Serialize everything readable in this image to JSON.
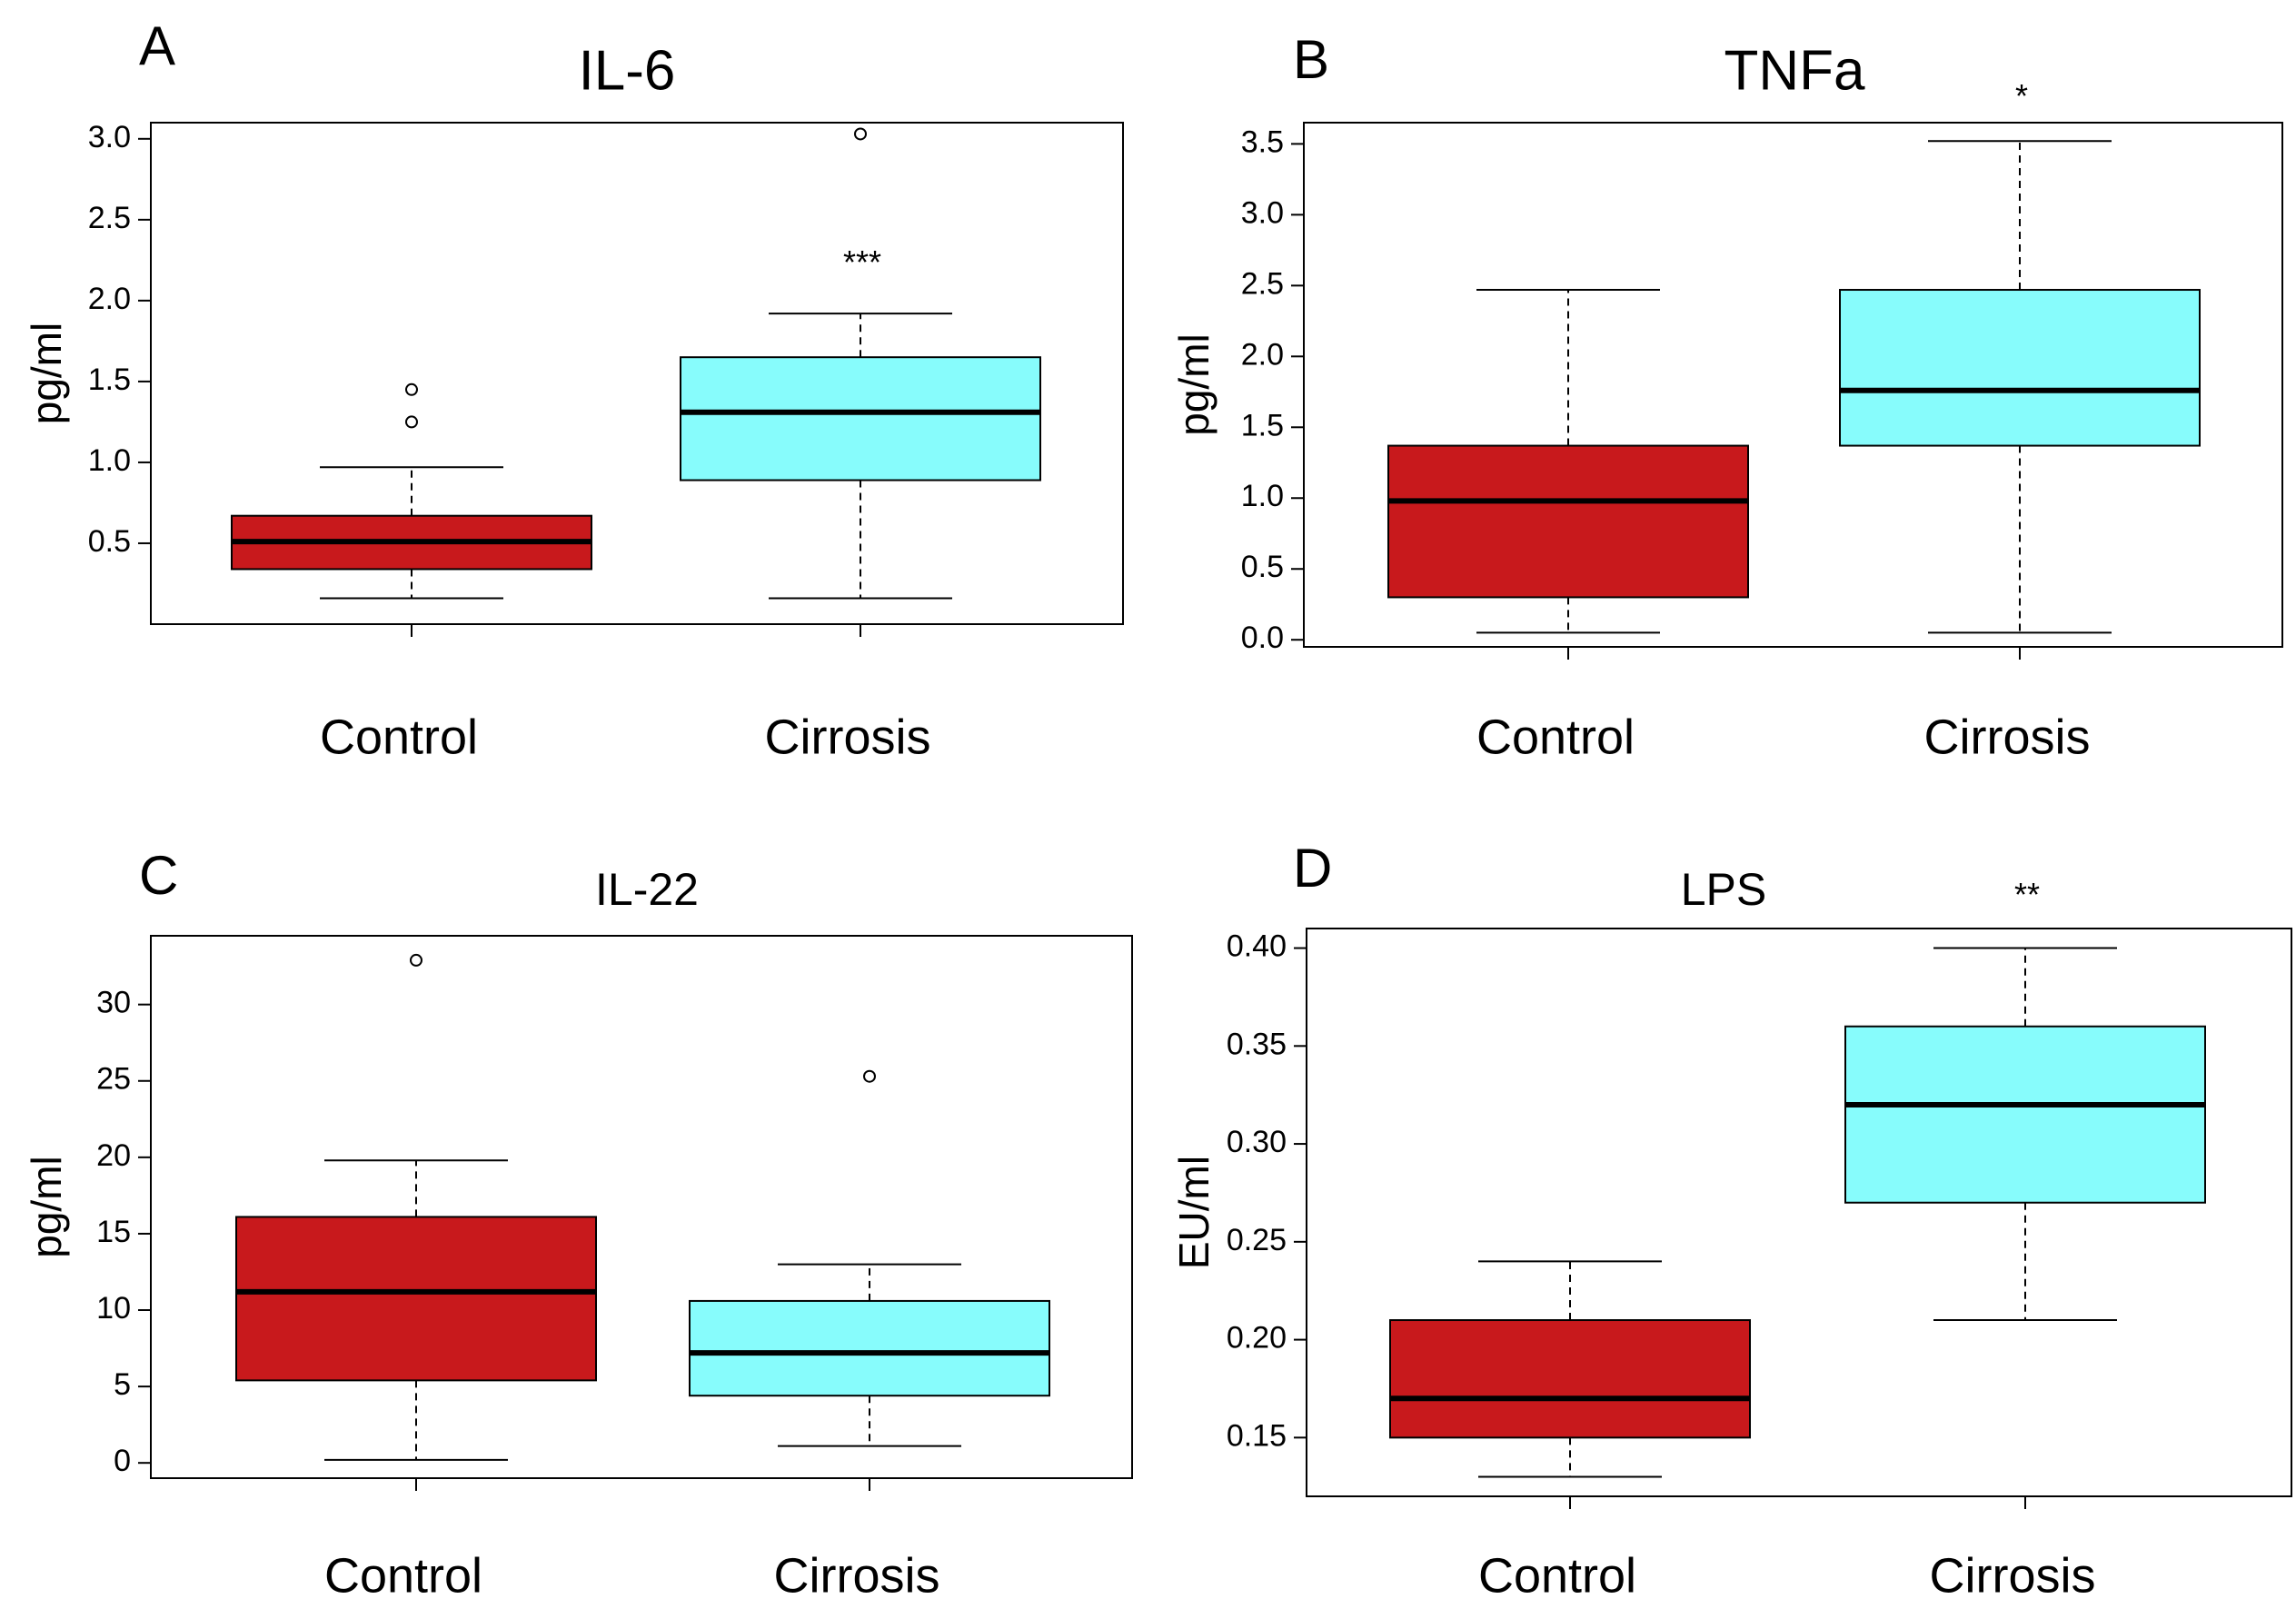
{
  "colors": {
    "control": "#c8191c",
    "cirrosis": "#87fcfc",
    "stroke": "#000000"
  },
  "chart_data": [
    {
      "type": "box",
      "panel_letter": "A",
      "title": "IL-6",
      "ylabel": "pg/ml",
      "categories": [
        "Control",
        "Cirrosis"
      ],
      "ylim": [
        0.0,
        3.1
      ],
      "yticks": [
        "0.5",
        "1.0",
        "1.5",
        "2.0",
        "2.5",
        "3.0"
      ],
      "boxes": [
        {
          "name": "Control",
          "whisker_low": 0.16,
          "q1": 0.34,
          "median": 0.51,
          "q3": 0.67,
          "whisker_high": 0.97,
          "outliers": [
            1.25,
            1.45
          ]
        },
        {
          "name": "Cirrosis",
          "whisker_low": 0.16,
          "q1": 0.89,
          "median": 1.31,
          "q3": 1.65,
          "whisker_high": 1.92,
          "outliers": [
            3.03
          ]
        }
      ],
      "significance": "***",
      "significance_y": 2.22
    },
    {
      "type": "box",
      "panel_letter": "B",
      "title": "TNFa",
      "ylabel": "pg/ml",
      "categories": [
        "Control",
        "Cirrosis"
      ],
      "ylim": [
        -0.05,
        3.65
      ],
      "yticks": [
        "0.0",
        "0.5",
        "1.0",
        "1.5",
        "2.0",
        "2.5",
        "3.0",
        "3.5"
      ],
      "boxes": [
        {
          "name": "Control",
          "whisker_low": 0.05,
          "q1": 0.3,
          "median": 0.98,
          "q3": 1.37,
          "whisker_high": 2.47,
          "outliers": []
        },
        {
          "name": "Cirrosis",
          "whisker_low": 0.05,
          "q1": 1.37,
          "median": 1.76,
          "q3": 2.47,
          "whisker_high": 3.52,
          "outliers": []
        }
      ],
      "significance": "*",
      "significance_y": 3.82
    },
    {
      "type": "box",
      "panel_letter": "C",
      "title": "IL-22",
      "ylabel": "pg/ml",
      "categories": [
        "Control",
        "Cirrosis"
      ],
      "ylim": [
        -1.0,
        34.5
      ],
      "yticks": [
        "0",
        "5",
        "10",
        "15",
        "20",
        "25",
        "30"
      ],
      "boxes": [
        {
          "name": "Control",
          "whisker_low": 0.2,
          "q1": 5.4,
          "median": 11.2,
          "q3": 16.1,
          "whisker_high": 19.8,
          "outliers": [
            32.9
          ]
        },
        {
          "name": "Cirrosis",
          "whisker_low": 1.1,
          "q1": 4.4,
          "median": 7.2,
          "q3": 10.6,
          "whisker_high": 13.0,
          "outliers": [
            25.3
          ]
        }
      ],
      "significance": "",
      "significance_y": null
    },
    {
      "type": "box",
      "panel_letter": "D",
      "title": "LPS",
      "ylabel": "EU/ml",
      "categories": [
        "Control",
        "Cirrosis"
      ],
      "ylim": [
        0.12,
        0.41
      ],
      "yticks": [
        "0.15",
        "0.20",
        "0.25",
        "0.30",
        "0.35",
        "0.40"
      ],
      "boxes": [
        {
          "name": "Control",
          "whisker_low": 0.13,
          "q1": 0.15,
          "median": 0.17,
          "q3": 0.21,
          "whisker_high": 0.24,
          "outliers": []
        },
        {
          "name": "Cirrosis",
          "whisker_low": 0.21,
          "q1": 0.27,
          "median": 0.32,
          "q3": 0.36,
          "whisker_high": 0.4,
          "outliers": []
        }
      ],
      "significance": "**",
      "significance_y": 0.426
    }
  ]
}
